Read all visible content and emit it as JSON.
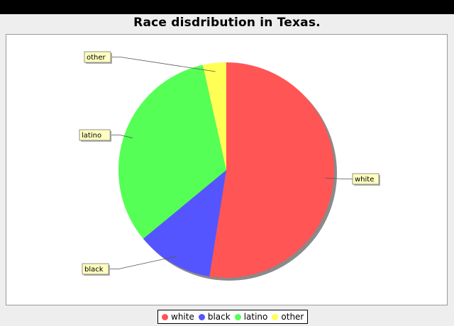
{
  "chart_data": {
    "type": "pie",
    "title": "Race disdribution in Texas.",
    "categories": [
      "white",
      "black",
      "latino",
      "other"
    ],
    "values": [
      52.5,
      11.5,
      32.5,
      3.5
    ],
    "colors": [
      "#ff5555",
      "#5555ff",
      "#55ff55",
      "#ffff55"
    ],
    "legend_position": "bottom",
    "series": [
      {
        "values": [
          52.5,
          11.5,
          32.5,
          3.5
        ]
      }
    ]
  }
}
